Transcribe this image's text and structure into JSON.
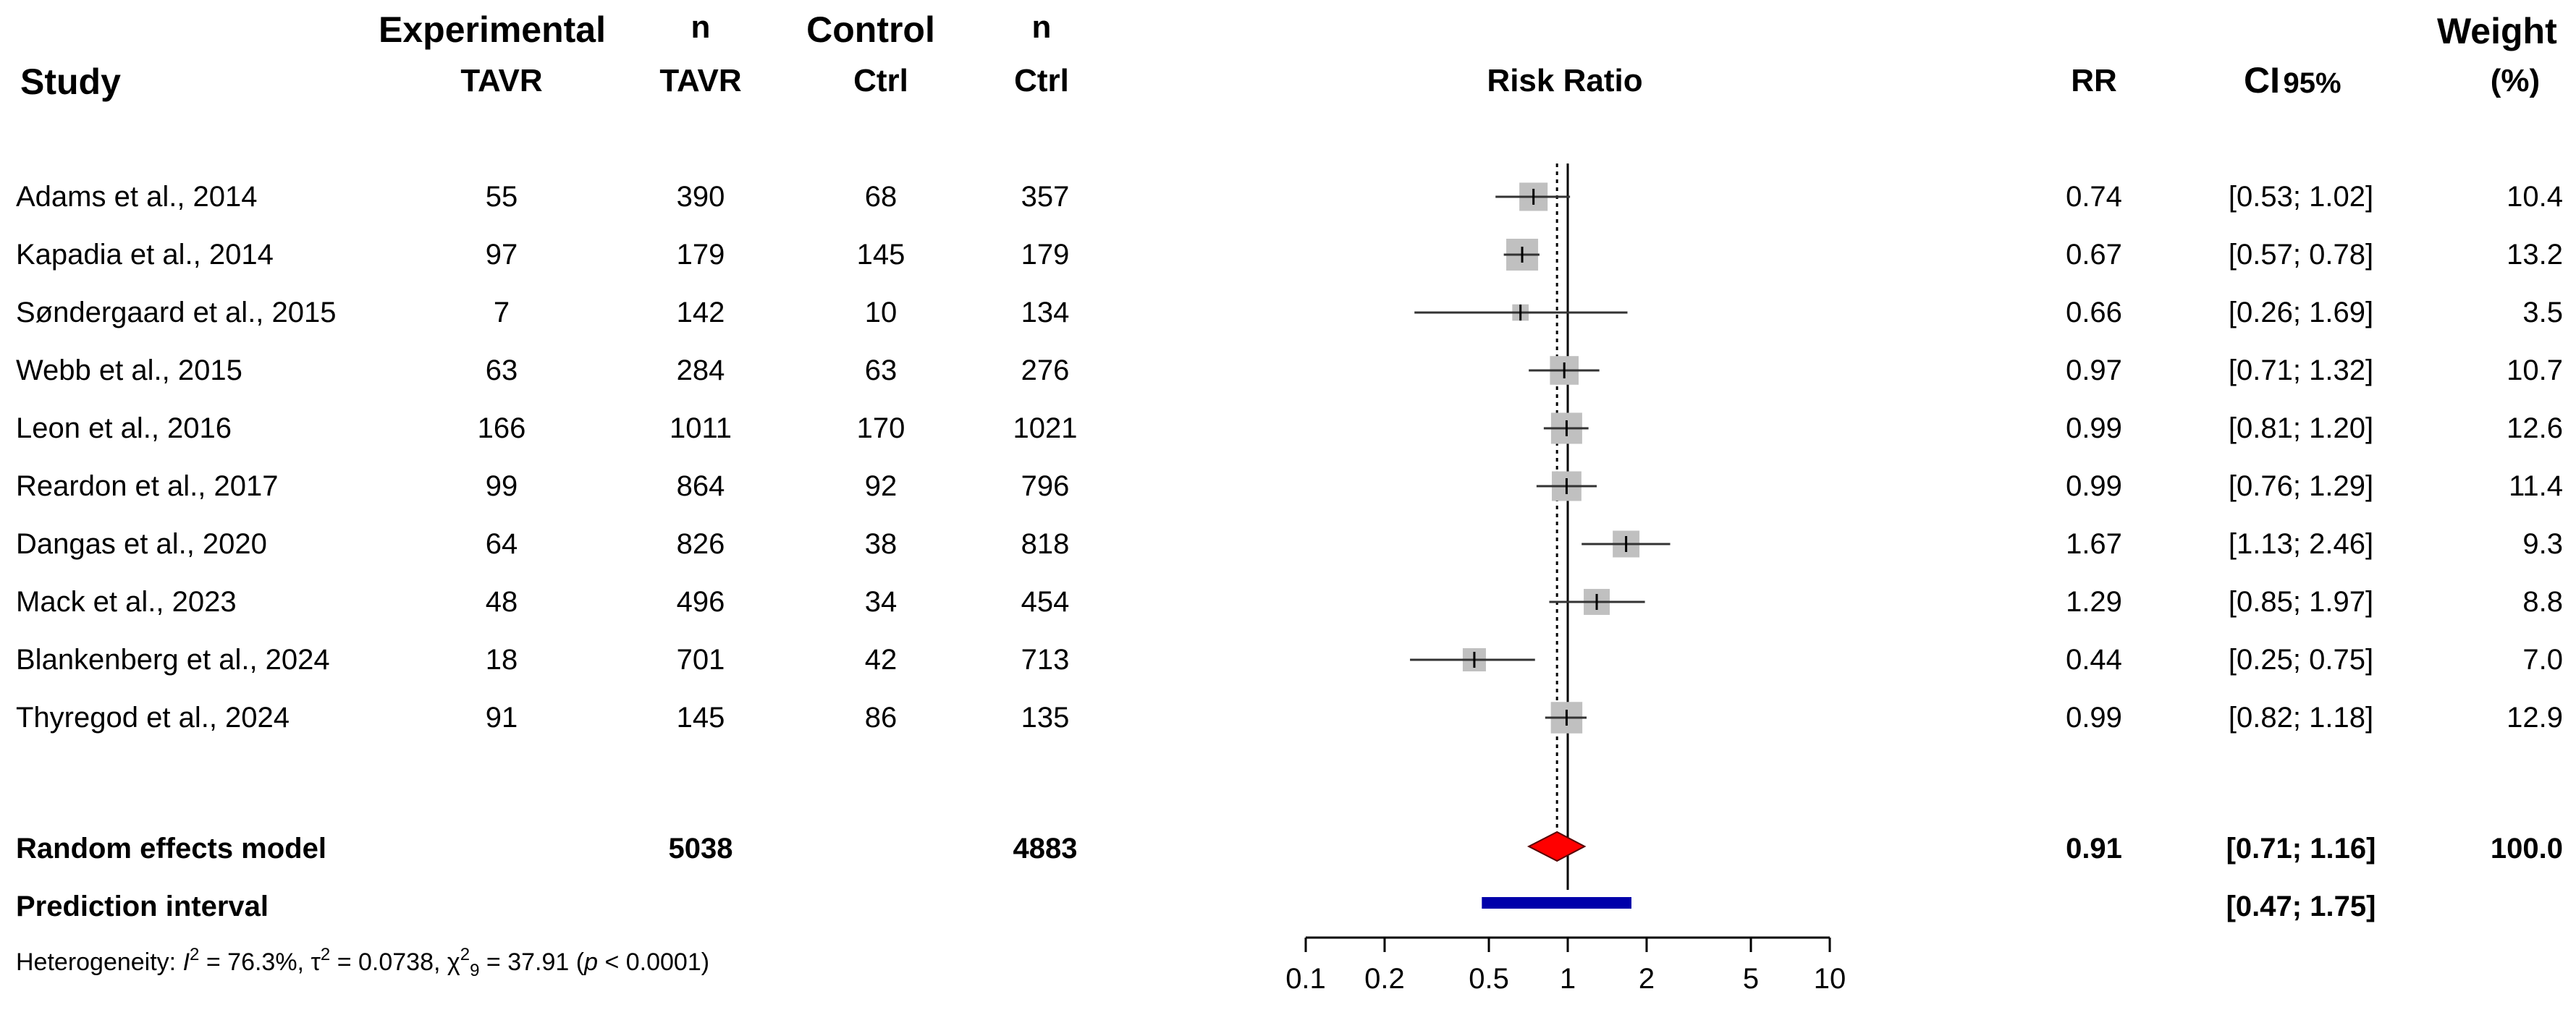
{
  "headers": {
    "study": "Study",
    "experimental": "Experimental",
    "exp_sub": "TAVR",
    "n_exp": "n",
    "n_exp_sub": "TAVR",
    "control": "Control",
    "ctrl_sub": "Ctrl",
    "n_ctrl": "n",
    "n_ctrl_sub": "Ctrl",
    "risk_ratio": "Risk Ratio",
    "rr": "RR",
    "ci_main": "CI",
    "ci_sub": "95%",
    "weight": "Weight",
    "weight_unit": "(%)"
  },
  "studies": [
    {
      "study": "Adams et al., 2014",
      "e": "55",
      "ne": "390",
      "c": "68",
      "nc": "357",
      "rr": "0.74",
      "ci": "[0.53; 1.02]",
      "w": "10.4"
    },
    {
      "study": "Kapadia et al., 2014",
      "e": "97",
      "ne": "179",
      "c": "145",
      "nc": "179",
      "rr": "0.67",
      "ci": "[0.57; 0.78]",
      "w": "13.2"
    },
    {
      "study": "Søndergaard et al., 2015",
      "e": "7",
      "ne": "142",
      "c": "10",
      "nc": "134",
      "rr": "0.66",
      "ci": "[0.26; 1.69]",
      "w": "3.5"
    },
    {
      "study": "Webb et al., 2015",
      "e": "63",
      "ne": "284",
      "c": "63",
      "nc": "276",
      "rr": "0.97",
      "ci": "[0.71; 1.32]",
      "w": "10.7"
    },
    {
      "study": "Leon et al., 2016",
      "e": "166",
      "ne": "1011",
      "c": "170",
      "nc": "1021",
      "rr": "0.99",
      "ci": "[0.81; 1.20]",
      "w": "12.6"
    },
    {
      "study": "Reardon et al., 2017",
      "e": "99",
      "ne": "864",
      "c": "92",
      "nc": "796",
      "rr": "0.99",
      "ci": "[0.76; 1.29]",
      "w": "11.4"
    },
    {
      "study": "Dangas et al., 2020",
      "e": "64",
      "ne": "826",
      "c": "38",
      "nc": "818",
      "rr": "1.67",
      "ci": "[1.13; 2.46]",
      "w": "9.3"
    },
    {
      "study": "Mack et al., 2023",
      "e": "48",
      "ne": "496",
      "c": "34",
      "nc": "454",
      "rr": "1.29",
      "ci": "[0.85; 1.97]",
      "w": "8.8"
    },
    {
      "study": "Blankenberg et al., 2024",
      "e": "18",
      "ne": "701",
      "c": "42",
      "nc": "713",
      "rr": "0.44",
      "ci": "[0.25; 0.75]",
      "w": "7.0"
    },
    {
      "study": "Thyregod et al., 2024",
      "e": "91",
      "ne": "145",
      "c": "86",
      "nc": "135",
      "rr": "0.99",
      "ci": "[0.82; 1.18]",
      "w": "12.9"
    }
  ],
  "random_effects": {
    "label": "Random effects model",
    "ne_total": "5038",
    "nc_total": "4883",
    "rr": "0.91",
    "ci": "[0.71; 1.16]",
    "w": "100.0"
  },
  "prediction_interval": {
    "label": "Prediction interval",
    "ci": "[0.47; 1.75]"
  },
  "heterogeneity": {
    "prefix": "Heterogeneity: ",
    "i2_symbol": "I",
    "i2_value": " = 76.3%, ",
    "tau2_symbol": "τ",
    "tau2_value": " = 0.0738, ",
    "chi2_symbol": "χ",
    "chi2_df": "9",
    "chi2_value": " = 37.91 (",
    "p_symbol": "p",
    "p_value": " < 0.0001)",
    "sup2": "2"
  },
  "chart_data": {
    "type": "forest",
    "title": "Risk Ratio",
    "xscale": "log",
    "xlim": [
      0.1,
      10
    ],
    "ticks": [
      0.1,
      0.2,
      0.5,
      1,
      2,
      5,
      10
    ],
    "tick_labels": [
      "0.1",
      "0.2",
      "0.5",
      "1",
      "2",
      "5",
      "10"
    ],
    "reference_line": 1,
    "pooled_line": 0.91,
    "studies": [
      {
        "label": "Adams et al., 2014",
        "rr": 0.74,
        "lower": 0.53,
        "upper": 1.02,
        "weight": 10.4
      },
      {
        "label": "Kapadia et al., 2014",
        "rr": 0.67,
        "lower": 0.57,
        "upper": 0.78,
        "weight": 13.2
      },
      {
        "label": "Søndergaard et al., 2015",
        "rr": 0.66,
        "lower": 0.26,
        "upper": 1.69,
        "weight": 3.5
      },
      {
        "label": "Webb et al., 2015",
        "rr": 0.97,
        "lower": 0.71,
        "upper": 1.32,
        "weight": 10.7
      },
      {
        "label": "Leon et al., 2016",
        "rr": 0.99,
        "lower": 0.81,
        "upper": 1.2,
        "weight": 12.6
      },
      {
        "label": "Reardon et al., 2017",
        "rr": 0.99,
        "lower": 0.76,
        "upper": 1.29,
        "weight": 11.4
      },
      {
        "label": "Dangas et al., 2020",
        "rr": 1.67,
        "lower": 1.13,
        "upper": 2.46,
        "weight": 9.3
      },
      {
        "label": "Mack et al., 2023",
        "rr": 1.29,
        "lower": 0.85,
        "upper": 1.97,
        "weight": 8.8
      },
      {
        "label": "Blankenberg et al., 2024",
        "rr": 0.44,
        "lower": 0.25,
        "upper": 0.75,
        "weight": 7.0
      },
      {
        "label": "Thyregod et al., 2024",
        "rr": 0.99,
        "lower": 0.82,
        "upper": 1.18,
        "weight": 12.9
      }
    ],
    "pooled": {
      "rr": 0.91,
      "lower": 0.71,
      "upper": 1.16
    },
    "prediction": {
      "lower": 0.47,
      "upper": 1.75
    },
    "colors": {
      "square": "#c0c0c0",
      "diamond": "#ff0000",
      "prediction": "#0000aa",
      "line": "#333333"
    }
  }
}
